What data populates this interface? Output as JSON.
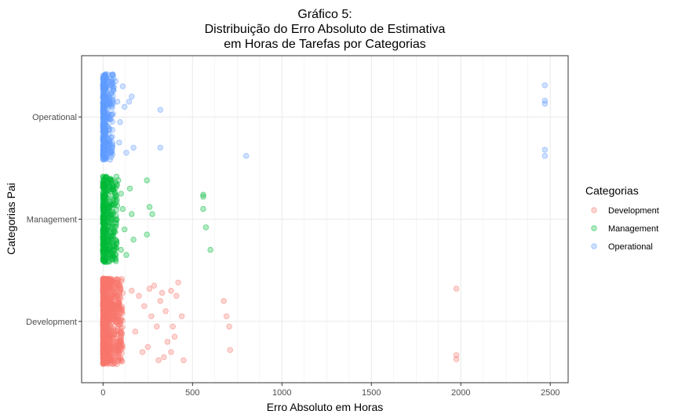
{
  "chart_data": {
    "type": "scatter",
    "title": [
      "Gráfico 5:",
      "Distribuição do Erro Absoluto de Estimativa",
      "em Horas de Tarefas por Categorias"
    ],
    "xlabel": "Erro Absoluto em Horas",
    "ylabel": "Categorias Pai",
    "xlim": [
      -120,
      2600
    ],
    "x_ticks": [
      0,
      500,
      1000,
      1500,
      2000,
      2500
    ],
    "categories": [
      "Development",
      "Management",
      "Operational"
    ],
    "grid": true,
    "legend": {
      "title": "Categorias",
      "position": "right",
      "entries": [
        "Development",
        "Management",
        "Operational"
      ]
    },
    "colors": {
      "Development": "#F8766D",
      "Management": "#00BA38",
      "Operational": "#619CFF"
    },
    "point_opacity": 0.3,
    "series": [
      {
        "name": "Development",
        "dense_range": [
          0,
          110
        ],
        "outliers": [
          [
            285,
            0.35
          ],
          [
            300,
            -0.05
          ],
          [
            320,
            0.2
          ],
          [
            340,
            -0.35
          ],
          [
            350,
            0.1
          ],
          [
            380,
            0.3
          ],
          [
            400,
            -0.15
          ],
          [
            420,
            0.38
          ],
          [
            440,
            0.05
          ],
          [
            380,
            -0.3
          ],
          [
            250,
            -0.25
          ],
          [
            230,
            0.15
          ],
          [
            260,
            0.32
          ],
          [
            310,
            -0.38
          ],
          [
            360,
            -0.2
          ],
          [
            410,
            0.25
          ],
          [
            450,
            -0.38
          ],
          [
            200,
            0.25
          ],
          [
            180,
            -0.1
          ],
          [
            160,
            0.3
          ],
          [
            220,
            -0.3
          ],
          [
            270,
            0.05
          ],
          [
            330,
            0.28
          ],
          [
            390,
            -0.05
          ],
          [
            675,
            0.2
          ],
          [
            690,
            0.05
          ],
          [
            705,
            -0.05
          ],
          [
            710,
            -0.28
          ],
          [
            1975,
            0.32
          ],
          [
            1975,
            -0.33
          ],
          [
            1975,
            -0.37
          ]
        ]
      },
      {
        "name": "Management",
        "dense_range": [
          0,
          80
        ],
        "outliers": [
          [
            85,
            0.38
          ],
          [
            100,
            0.25
          ],
          [
            110,
            0.1
          ],
          [
            120,
            -0.1
          ],
          [
            150,
            0.3
          ],
          [
            100,
            -0.3
          ],
          [
            130,
            -0.35
          ],
          [
            160,
            0.05
          ],
          [
            170,
            -0.2
          ],
          [
            245,
            0.38
          ],
          [
            245,
            -0.15
          ],
          [
            260,
            0.12
          ],
          [
            275,
            0.05
          ],
          [
            560,
            0.24
          ],
          [
            560,
            0.22
          ],
          [
            560,
            0.1
          ],
          [
            575,
            -0.08
          ],
          [
            600,
            -0.3
          ]
        ]
      },
      {
        "name": "Operational",
        "dense_range": [
          0,
          60
        ],
        "outliers": [
          [
            70,
            0.35
          ],
          [
            80,
            0.15
          ],
          [
            95,
            -0.05
          ],
          [
            110,
            0.3
          ],
          [
            120,
            0.1
          ],
          [
            145,
            0.15
          ],
          [
            160,
            0.2
          ],
          [
            170,
            -0.3
          ],
          [
            90,
            -0.25
          ],
          [
            130,
            -0.35
          ],
          [
            320,
            0.07
          ],
          [
            320,
            -0.3
          ],
          [
            800,
            -0.38
          ],
          [
            2470,
            0.31
          ],
          [
            2470,
            0.16
          ],
          [
            2470,
            0.13
          ],
          [
            2470,
            -0.32
          ],
          [
            2470,
            -0.38
          ]
        ]
      }
    ]
  }
}
